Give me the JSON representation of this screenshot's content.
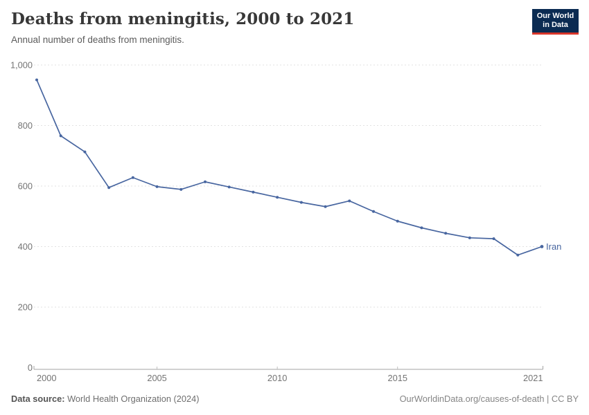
{
  "header": {
    "title": "Deaths from meningitis, 2000 to 2021",
    "subtitle": "Annual number of deaths from meningitis."
  },
  "logo": {
    "line1": "Our World",
    "line2": "in Data",
    "bg_color": "#0b2b52",
    "accent_color": "#d8352a"
  },
  "chart_data": {
    "type": "line",
    "title": "Deaths from meningitis, 2000 to 2021",
    "subtitle": "Annual number of deaths from meningitis.",
    "x": [
      2000,
      2001,
      2002,
      2003,
      2004,
      2005,
      2006,
      2007,
      2008,
      2009,
      2010,
      2011,
      2012,
      2013,
      2014,
      2015,
      2016,
      2017,
      2018,
      2019,
      2020,
      2021
    ],
    "series": [
      {
        "name": "Iran",
        "color": "#4866A0",
        "values": [
          951,
          766,
          713,
          595,
          628,
          598,
          589,
          614,
          597,
          580,
          563,
          546,
          532,
          551,
          516,
          484,
          462,
          444,
          429,
          426,
          372,
          400
        ]
      }
    ],
    "end_label": "Iran",
    "ylim": [
      0,
      1000
    ],
    "yticks": [
      0,
      200,
      400,
      600,
      800,
      1000
    ],
    "ytick_labels": [
      "0",
      "200",
      "400",
      "600",
      "800",
      "1,000"
    ],
    "xticks": [
      2000,
      2005,
      2010,
      2015,
      2021
    ],
    "xtick_labels": [
      "2000",
      "2005",
      "2010",
      "2015",
      "2021"
    ],
    "grid": "horizontal-dashed",
    "grid_color": "#e2e2e2",
    "axis_color": "#a3a3a3",
    "tick_text_color": "#737373",
    "legend_position": "end-of-line"
  },
  "footer": {
    "source_label": "Data source:",
    "source_value": " World Health Organization (2024)",
    "credit": "OurWorldinData.org/causes-of-death | CC BY"
  }
}
